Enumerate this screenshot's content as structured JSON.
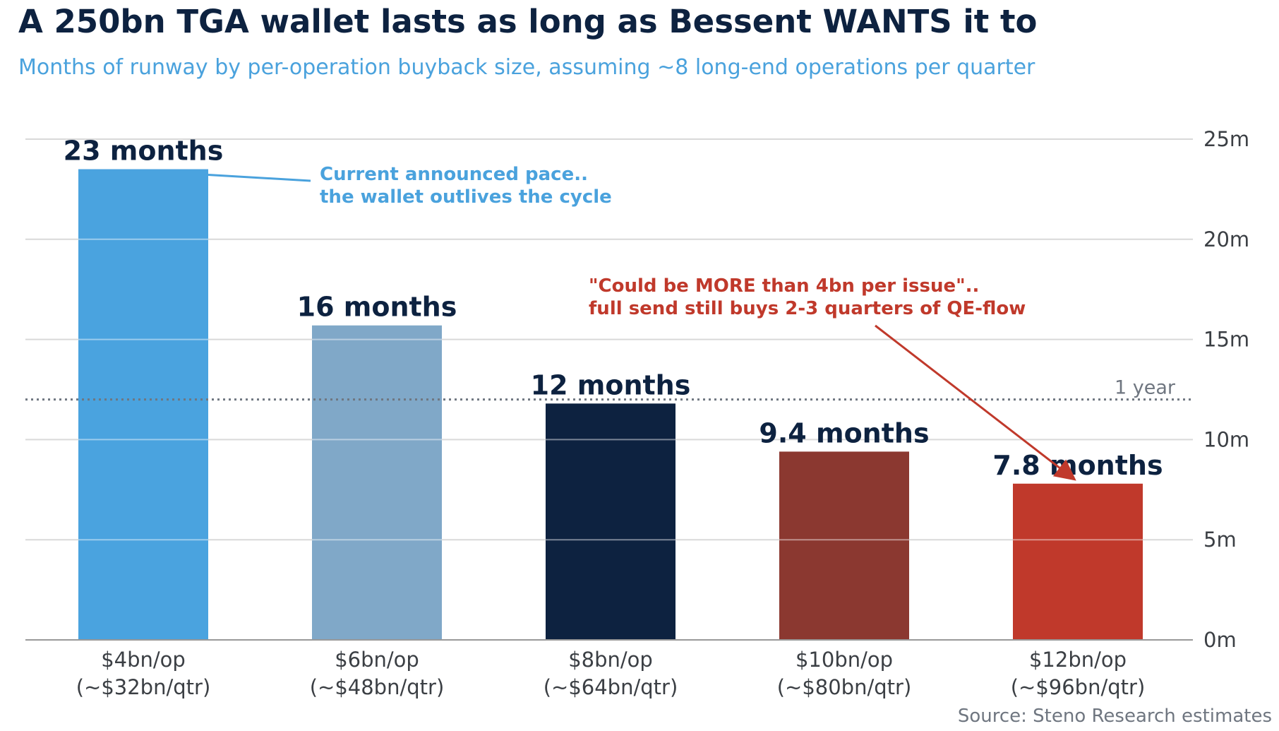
{
  "title": "A 250bn TGA wallet lasts as long as Bessent WANTS it to",
  "subtitle": "Months of runway by per-operation buyback size, assuming ~8 long-end operations per quarter",
  "source": "Source: Steno Research estimates",
  "chart_data": {
    "type": "bar",
    "categories": [
      [
        "$4bn/op",
        "(~$32bn/qtr)"
      ],
      [
        "$6bn/op",
        "(~$48bn/qtr)"
      ],
      [
        "$8bn/op",
        "(~$64bn/qtr)"
      ],
      [
        "$10bn/op",
        "(~$80bn/qtr)"
      ],
      [
        "$12bn/op",
        "(~$96bn/qtr)"
      ]
    ],
    "values": [
      23.5,
      15.7,
      11.8,
      9.4,
      7.8
    ],
    "data_labels": [
      "23 months",
      "16 months",
      "12 months",
      "9.4 months",
      "7.8 months"
    ],
    "colors": [
      "#4aa3df",
      "#80a8c8",
      "#0d2240",
      "#8b3830",
      "#c0392b"
    ],
    "ylim": [
      0,
      25
    ],
    "yticks": [
      0,
      5,
      10,
      15,
      20,
      25
    ],
    "ytick_labels": [
      "0m",
      "5m",
      "10m",
      "15m",
      "20m",
      "25m"
    ],
    "y_axis_side": "right",
    "grid": true,
    "reference_line": {
      "value": 12,
      "label": "1 year",
      "style": "dotted",
      "color": "#6f7680"
    },
    "annotations": [
      {
        "lines": [
          "Current announced pace..",
          "the wallet outlives the cycle"
        ],
        "color": "#4aa2dd",
        "target_bar": 0
      },
      {
        "lines": [
          "\"Could be MORE than 4bn per issue\"..",
          "full send still buys 2-3 quarters of QE-flow"
        ],
        "color": "#c0392b",
        "target_bar": 4
      }
    ]
  }
}
